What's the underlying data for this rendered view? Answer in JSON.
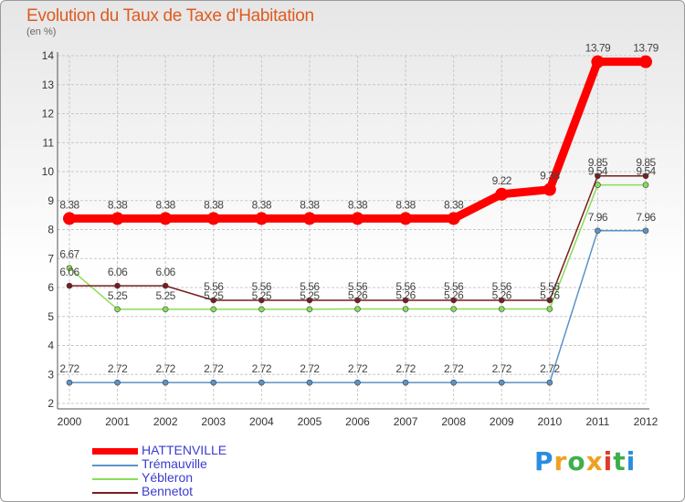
{
  "chart_data": {
    "type": "line",
    "title": "Evolution du Taux de Taxe d'Habitation",
    "subtitle": "(en %)",
    "x": [
      "2000",
      "2001",
      "2002",
      "2003",
      "2004",
      "2005",
      "2006",
      "2007",
      "2008",
      "2009",
      "2010",
      "2011",
      "2012"
    ],
    "ylim": [
      2,
      14
    ],
    "yticks": [
      2,
      3,
      4,
      5,
      6,
      7,
      8,
      9,
      10,
      11,
      12,
      13,
      14
    ],
    "series": [
      {
        "name": "HATTENVILLE",
        "color": "#ff0000",
        "values": [
          8.38,
          8.38,
          8.38,
          8.38,
          8.38,
          8.38,
          8.38,
          8.38,
          8.38,
          9.22,
          9.38,
          13.79,
          13.79
        ],
        "labels": [
          "8.38",
          "8.38",
          "8.38",
          "8.38",
          "8.38",
          "8.38",
          "8.38",
          "8.38",
          "8.38",
          "9.22",
          "9.38",
          "13.79",
          "13.79"
        ]
      },
      {
        "name": "Trémauville",
        "color": "#5b93c8",
        "values": [
          2.72,
          2.72,
          2.72,
          2.72,
          2.72,
          2.72,
          2.72,
          2.72,
          2.72,
          2.72,
          2.72,
          7.96,
          7.96
        ],
        "labels": [
          "2.72",
          "2.72",
          "2.72",
          "2.72",
          "2.72",
          "2.72",
          "2.72",
          "2.72",
          "2.72",
          "2.72",
          "2.72",
          "7.96",
          "7.96"
        ]
      },
      {
        "name": "Yébleron",
        "color": "#88dd55",
        "values": [
          6.67,
          5.25,
          5.25,
          5.25,
          5.25,
          5.25,
          5.26,
          5.26,
          5.26,
          5.26,
          5.26,
          9.54,
          9.54
        ],
        "labels": [
          "6.67",
          "5.25",
          "5.25",
          "5.25",
          "5.25",
          "5.25",
          "5.26",
          "5.26",
          "5.26",
          "5.26",
          "5.26",
          "9.54",
          "9.54"
        ]
      },
      {
        "name": "Bennetot",
        "color": "#7a1c1c",
        "values": [
          6.06,
          6.06,
          6.06,
          5.56,
          5.56,
          5.56,
          5.56,
          5.56,
          5.56,
          5.56,
          5.56,
          9.85,
          9.85
        ],
        "labels": [
          "6.06",
          "6.06",
          "6.06",
          "5.56",
          "5.56",
          "5.56",
          "5.56",
          "5.56",
          "5.56",
          "5.56",
          "5.56",
          "9.85",
          "9.85"
        ]
      }
    ]
  },
  "logo": {
    "text": "Proxiti",
    "letters": [
      "P",
      "r",
      "o",
      "x",
      "i",
      "t",
      "i"
    ],
    "colors": [
      "#2a8de0",
      "#f0a020",
      "#3cb04a",
      "#f0a020",
      "#e03a2a",
      "#3cb04a",
      "#2a8de0"
    ]
  }
}
